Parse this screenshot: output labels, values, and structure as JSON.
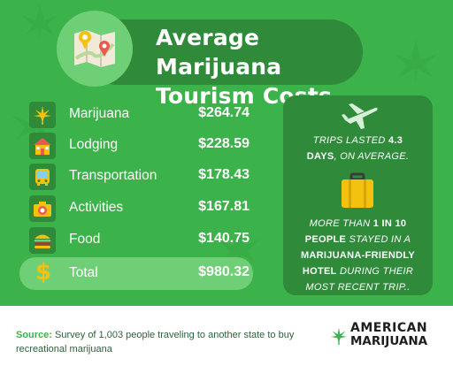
{
  "header": {
    "title_line1": "Average Marijuana",
    "title_line2": "Tourism Costs"
  },
  "costs": [
    {
      "label": "Marijuana",
      "value": "$264.74",
      "icon": "cannabis-leaf-icon"
    },
    {
      "label": "Lodging",
      "value": "$228.59",
      "icon": "house-icon"
    },
    {
      "label": "Transportation",
      "value": "$178.43",
      "icon": "bus-icon"
    },
    {
      "label": "Activities",
      "value": "$167.81",
      "icon": "camera-icon"
    },
    {
      "label": "Food",
      "value": "$140.75",
      "icon": "burger-icon"
    }
  ],
  "total": {
    "symbol": "$",
    "label": "Total",
    "value": "$980.32"
  },
  "side_panel": {
    "trip_text_a": "TRIPS LASTED ",
    "trip_days": "4.3",
    "trip_text_b": "DAYS",
    "trip_text_c": ", ON AVERAGE.",
    "stay_text_a": "MORE THAN ",
    "stay_highlight_a": "1 IN 10",
    "stay_highlight_b": "PEOPLE",
    "stay_text_b": " STAYED IN A",
    "stay_text_c": "MARIJUANA-FRIENDLY",
    "stay_text_d": "HOTEL",
    "stay_text_e": " DURING THEIR",
    "stay_text_f": "MOST RECENT TRIP.."
  },
  "footer": {
    "source_label": "Source:",
    "source_text": " Survey of 1,003 people traveling to another state to buy recreational marijuana",
    "brand_line1": "AMERICAN",
    "brand_line2": "MARIJUANA"
  },
  "colors": {
    "background_green": "#3cb34a",
    "dark_green": "#2f8a3a",
    "light_green": "#6fcf76",
    "gold": "#f4c10f"
  }
}
